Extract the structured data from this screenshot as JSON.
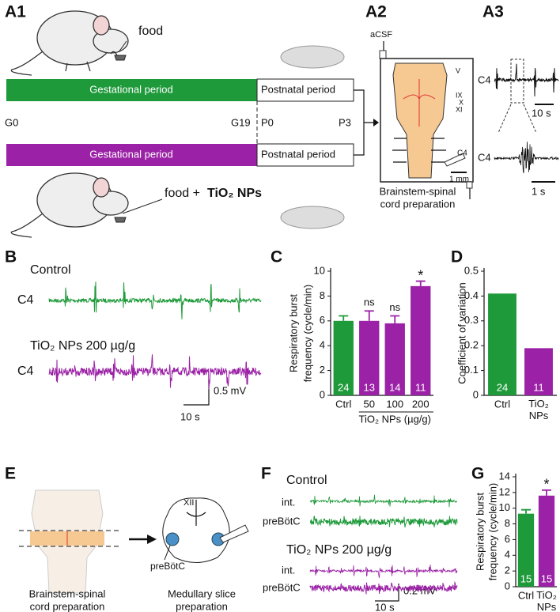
{
  "panels": {
    "a1": "A1",
    "a2": "A2",
    "a3": "A3",
    "b": "B",
    "e": "E",
    "f": "F"
  },
  "a1": {
    "food": "food",
    "food_np_prefix": "food +",
    "food_np": "TiO₂ NPs",
    "control_gestational": "Gestational period",
    "control_postnatal": "Postnatal period",
    "np_gestational": "Gestational period",
    "np_postnatal": "Postnatal period",
    "timepoints": [
      "G0",
      "G19",
      "P0",
      "P3"
    ]
  },
  "a2": {
    "acsf": "aCSF",
    "nerves": [
      "V",
      "IX",
      "X",
      "XI"
    ],
    "c4": "C4",
    "scale": "1 mm",
    "caption": [
      "Brainstem-spinal",
      "cord preparation"
    ]
  },
  "a3": {
    "c4_top": "C4",
    "scale_top": "10 s",
    "c4_bottom": "C4",
    "scale_bottom": "1 s"
  },
  "b": {
    "control": "Control",
    "c4_control": "C4",
    "np": "TiO₂ NPs 200 µg/g",
    "c4_np": "C4",
    "scale_v": "0.5 mV",
    "scale_t": "10 s"
  },
  "e": {
    "xii": "XII",
    "prebotc": "preBötC",
    "caption_left": [
      "Brainstem-spinal",
      "cord preparation"
    ],
    "caption_right": [
      "Medullary slice",
      "preparation"
    ]
  },
  "f": {
    "control": "Control",
    "int_control": "int.",
    "prebotc_control": "preBötC",
    "np": "TiO₂ NPs 200 µg/g",
    "int_np": "int.",
    "prebotc_np": "preBötC",
    "scale_v": "0.2 mV",
    "scale_t": "10 s"
  },
  "chart_data": [
    {
      "type": "bar",
      "panel": "C",
      "ylabel": [
        "Respiratory burst",
        "frequency (cycle/min)"
      ],
      "xlabel": "TiO₂ NPs (µg/g)",
      "categories": [
        "Ctrl",
        "50",
        "100",
        "200"
      ],
      "values": [
        6.0,
        6.0,
        5.8,
        8.8
      ],
      "errors": [
        0.4,
        0.8,
        0.6,
        0.4
      ],
      "n": [
        24,
        13,
        14,
        11
      ],
      "significance": [
        null,
        "ns",
        "ns",
        "*"
      ],
      "colors": [
        "#1e9a3a",
        "#9b22a6",
        "#9b22a6",
        "#9b22a6"
      ],
      "ylim": [
        0,
        10
      ],
      "yticks": [
        0,
        2,
        4,
        6,
        8,
        10
      ]
    },
    {
      "type": "bar",
      "panel": "D",
      "ylabel": [
        "Coefficient of variation"
      ],
      "categories": [
        "Ctrl",
        "TiO₂ NPs"
      ],
      "values": [
        0.41,
        0.19
      ],
      "n": [
        24,
        11
      ],
      "colors": [
        "#1e9a3a",
        "#9b22a6"
      ],
      "ylim": [
        0,
        0.5
      ],
      "yticks": [
        0,
        0.1,
        0.2,
        0.3,
        0.4,
        0.5
      ]
    },
    {
      "type": "bar",
      "panel": "G",
      "ylabel": [
        "Respiratory burst",
        "frequency (cycle/min)"
      ],
      "categories": [
        "Ctrl",
        "TiO₂ NPs"
      ],
      "values": [
        9.3,
        11.6
      ],
      "errors": [
        0.5,
        0.7
      ],
      "n": [
        15,
        15
      ],
      "significance": [
        null,
        "*"
      ],
      "colors": [
        "#1e9a3a",
        "#9b22a6"
      ],
      "ylim": [
        0,
        14
      ],
      "yticks": [
        0,
        2,
        4,
        6,
        8,
        10,
        12,
        14
      ]
    }
  ]
}
